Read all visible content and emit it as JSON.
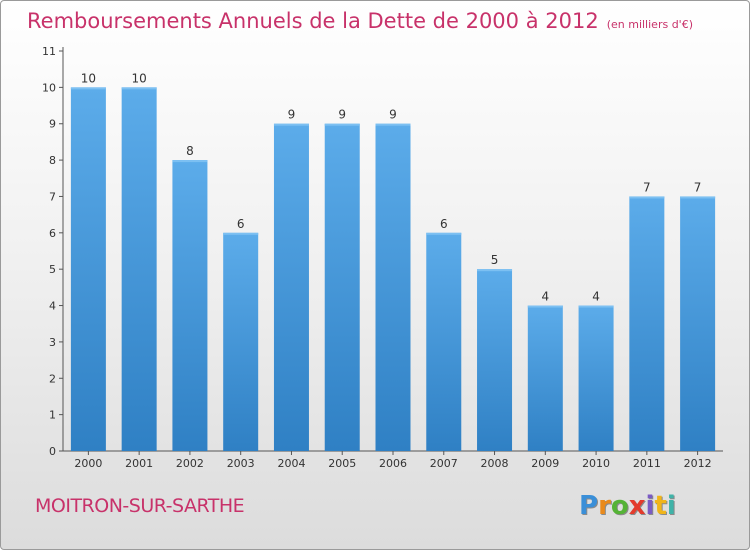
{
  "header": {
    "title": "Remboursements Annuels de la Dette de 2000 à 2012",
    "subtitle": "(en milliers d'€)"
  },
  "footer": {
    "commune": "MOITRON-SUR-SARTHE",
    "logo_letters": [
      "P",
      "r",
      "o",
      "x",
      "i",
      "t",
      "i"
    ],
    "logo_colors": [
      "#3a8fd8",
      "#e98a1c",
      "#55b336",
      "#e33b2c",
      "#7a5bc4",
      "#f0b51a",
      "#3fb3a8"
    ]
  },
  "chart_data": {
    "type": "bar",
    "categories": [
      "2000",
      "2001",
      "2002",
      "2003",
      "2004",
      "2005",
      "2006",
      "2007",
      "2008",
      "2009",
      "2010",
      "2011",
      "2012"
    ],
    "values": [
      10,
      10,
      8,
      6,
      9,
      9,
      9,
      6,
      5,
      4,
      4,
      7,
      7
    ],
    "ylim": [
      0,
      11
    ],
    "yticks": [
      0,
      1,
      2,
      3,
      4,
      5,
      6,
      7,
      8,
      9,
      10,
      11
    ],
    "grid": false,
    "bar_color": "#5aaae6",
    "bar_color_dark": "#2f80c4"
  }
}
